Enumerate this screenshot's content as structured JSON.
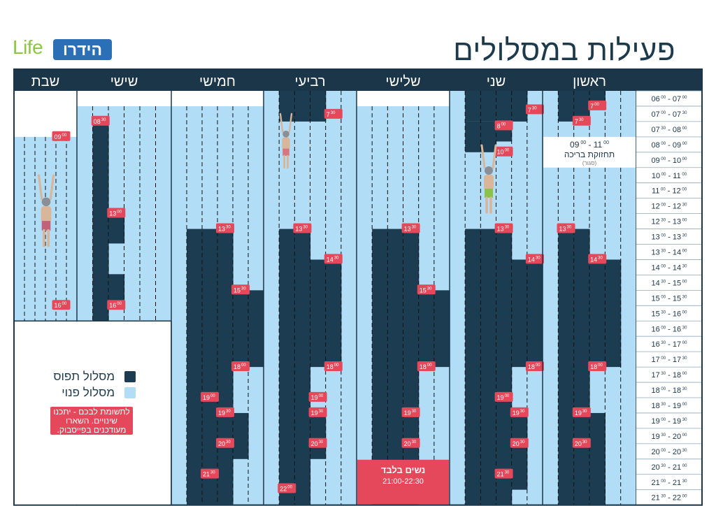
{
  "title": "פעילות במסלולים",
  "logo": {
    "life": "Life",
    "brand": "הידרו"
  },
  "legend": {
    "occupied": "מסלול תפוס",
    "free": "מסלול פנוי",
    "notice": "לתשומת לבכם - יתכנו שינויים. השארו מעודכנים בפייסבוק."
  },
  "colors": {
    "occupied": "#1c3d51",
    "free": "#b2ddf7",
    "header": "#1b3648",
    "badge": "#e5485a",
    "white": "#ffffff",
    "grid": "#1b3648"
  },
  "time_slots": [
    {
      "a": "06",
      "as": "00",
      "b": "07",
      "bs": "00"
    },
    {
      "a": "07",
      "as": "00",
      "b": "07",
      "bs": "30"
    },
    {
      "a": "07",
      "as": "30",
      "b": "08",
      "bs": "00"
    },
    {
      "a": "08",
      "as": "00",
      "b": "09",
      "bs": "00"
    },
    {
      "a": "09",
      "as": "00",
      "b": "10",
      "bs": "00"
    },
    {
      "a": "10",
      "as": "00",
      "b": "11",
      "bs": "00"
    },
    {
      "a": "11",
      "as": "00",
      "b": "12",
      "bs": "00"
    },
    {
      "a": "12",
      "as": "00",
      "b": "12",
      "bs": "30"
    },
    {
      "a": "12",
      "as": "30",
      "b": "13",
      "bs": "00"
    },
    {
      "a": "13",
      "as": "00",
      "b": "13",
      "bs": "30"
    },
    {
      "a": "13",
      "as": "30",
      "b": "14",
      "bs": "00"
    },
    {
      "a": "14",
      "as": "00",
      "b": "14",
      "bs": "30"
    },
    {
      "a": "14",
      "as": "30",
      "b": "15",
      "bs": "00"
    },
    {
      "a": "15",
      "as": "00",
      "b": "15",
      "bs": "30"
    },
    {
      "a": "15",
      "as": "30",
      "b": "16",
      "bs": "00"
    },
    {
      "a": "16",
      "as": "00",
      "b": "16",
      "bs": "30"
    },
    {
      "a": "16",
      "as": "30",
      "b": "17",
      "bs": "00"
    },
    {
      "a": "17",
      "as": "00",
      "b": "17",
      "bs": "30"
    },
    {
      "a": "17",
      "as": "30",
      "b": "18",
      "bs": "00"
    },
    {
      "a": "18",
      "as": "00",
      "b": "18",
      "bs": "30"
    },
    {
      "a": "18",
      "as": "30",
      "b": "19",
      "bs": "00"
    },
    {
      "a": "19",
      "as": "00",
      "b": "19",
      "bs": "30"
    },
    {
      "a": "19",
      "as": "30",
      "b": "20",
      "bs": "00"
    },
    {
      "a": "20",
      "as": "00",
      "b": "20",
      "bs": "30"
    },
    {
      "a": "20",
      "as": "30",
      "b": "21",
      "bs": "00"
    },
    {
      "a": "21",
      "as": "00",
      "b": "21",
      "bs": "30"
    },
    {
      "a": "21",
      "as": "30",
      "b": "22",
      "bs": "00"
    }
  ],
  "days": [
    {
      "key": "sun",
      "name": "ראשון",
      "open": 0,
      "close": 27,
      "occupied": [
        {
          "lane": 3,
          "from": 0,
          "to": 1
        },
        {
          "lane": 4,
          "from": 0,
          "to": 2
        },
        {
          "lane": 5,
          "from": 0,
          "to": 2
        },
        {
          "lane": 4,
          "from": 9,
          "to": 27
        },
        {
          "lane": 5,
          "from": 9,
          "to": 27
        },
        {
          "lane": 3,
          "from": 11,
          "to": 18
        },
        {
          "lane": 2,
          "from": 11,
          "to": 18
        },
        {
          "lane": 3,
          "from": 21,
          "to": 27
        }
      ],
      "badges": [
        {
          "h": "7",
          "m": "00",
          "lane": 3,
          "slot": 0.95
        },
        {
          "h": "7",
          "m": "30",
          "lane": 4,
          "slot": 1.95
        },
        {
          "h": "13",
          "m": "30",
          "lane": 5,
          "slot": 8.95
        },
        {
          "h": "14",
          "m": "30",
          "lane": 3,
          "slot": 10.95
        },
        {
          "h": "18",
          "m": "00",
          "lane": 3,
          "slot": 17.95
        },
        {
          "h": "19",
          "m": "30",
          "lane": 4,
          "slot": 20.95
        },
        {
          "h": "20",
          "m": "30",
          "lane": 4,
          "slot": 22.95
        }
      ],
      "maintenance": {
        "time_start": "09",
        "ts_sup": "00",
        "time_end": "11",
        "te_sup": "00",
        "label": "תחזוקת בריכה",
        "sub": "(סגור)",
        "from": 3,
        "to": 5
      }
    },
    {
      "key": "mon",
      "name": "שני",
      "open": 0,
      "close": 27,
      "occupied": [
        {
          "lane": 2,
          "from": 0,
          "to": 2
        },
        {
          "lane": 3,
          "from": 0,
          "to": 2
        },
        {
          "lane": 4,
          "from": 0,
          "to": 2
        },
        {
          "lane": 5,
          "from": 0,
          "to": 2
        },
        {
          "lane": 3,
          "from": 2,
          "to": 3.3
        },
        {
          "lane": 4,
          "from": 2,
          "to": 4
        },
        {
          "lane": 5,
          "from": 2,
          "to": 4
        },
        {
          "lane": 3,
          "from": 9,
          "to": 27
        },
        {
          "lane": 4,
          "from": 9,
          "to": 27
        },
        {
          "lane": 5,
          "from": 9,
          "to": 27
        },
        {
          "lane": 2,
          "from": 11,
          "to": 18
        },
        {
          "lane": 1,
          "from": 11,
          "to": 18
        },
        {
          "lane": 2,
          "from": 21,
          "to": 26
        }
      ],
      "badges": [
        {
          "h": "7",
          "m": "30",
          "lane": 1,
          "slot": 1.2
        },
        {
          "h": "8",
          "m": "00",
          "lane": 3,
          "slot": 2.25
        },
        {
          "h": "10",
          "m": "00",
          "lane": 3,
          "slot": 3.95
        },
        {
          "h": "13",
          "m": "30",
          "lane": 3,
          "slot": 8.95
        },
        {
          "h": "14",
          "m": "30",
          "lane": 1,
          "slot": 10.95
        },
        {
          "h": "18",
          "m": "00",
          "lane": 1,
          "slot": 17.95
        },
        {
          "h": "19",
          "m": "00",
          "lane": 3,
          "slot": 19.95
        },
        {
          "h": "19",
          "m": "30",
          "lane": 2,
          "slot": 20.95
        },
        {
          "h": "20",
          "m": "30",
          "lane": 2,
          "slot": 22.95
        },
        {
          "h": "21",
          "m": "30",
          "lane": 3,
          "slot": 24.95
        }
      ]
    },
    {
      "key": "tue",
      "name": "שלישי",
      "open": 1,
      "close": 27,
      "occupied": [
        {
          "lane": 3,
          "from": 9,
          "to": 27
        },
        {
          "lane": 4,
          "from": 9,
          "to": 27
        },
        {
          "lane": 5,
          "from": 9,
          "to": 27
        },
        {
          "lane": 2,
          "from": 13,
          "to": 18
        },
        {
          "lane": 1,
          "from": 13,
          "to": 18
        }
      ],
      "badges": [
        {
          "h": "13",
          "m": "30",
          "lane": 3,
          "slot": 8.95
        },
        {
          "h": "15",
          "m": "30",
          "lane": 2,
          "slot": 12.95
        },
        {
          "h": "18",
          "m": "00",
          "lane": 2,
          "slot": 17.95
        },
        {
          "h": "19",
          "m": "30",
          "lane": 3,
          "slot": 20.95
        },
        {
          "h": "20",
          "m": "30",
          "lane": 3,
          "slot": 22.95
        }
      ],
      "women": {
        "label": "נשים בלבד",
        "hours": "21:00-22:30",
        "from": 24,
        "to": 27
      }
    },
    {
      "key": "wed",
      "name": "רביעי",
      "open": 0,
      "close": 27,
      "occupied": [
        {
          "lane": 3,
          "from": 0,
          "to": 2
        },
        {
          "lane": 4,
          "from": 0,
          "to": 2
        },
        {
          "lane": 5,
          "from": 0,
          "to": 2
        },
        {
          "lane": 4,
          "from": 9,
          "to": 27
        },
        {
          "lane": 5,
          "from": 9,
          "to": 27
        },
        {
          "lane": 3,
          "from": 11,
          "to": 18
        },
        {
          "lane": 2,
          "from": 11,
          "to": 18
        },
        {
          "lane": 3,
          "from": 21,
          "to": 24
        }
      ],
      "badges": [
        {
          "h": "7",
          "m": "30",
          "lane": 2,
          "slot": 1.5
        },
        {
          "h": "13",
          "m": "30",
          "lane": 4,
          "slot": 8.95
        },
        {
          "h": "14",
          "m": "30",
          "lane": 2,
          "slot": 10.95
        },
        {
          "h": "18",
          "m": "00",
          "lane": 2,
          "slot": 17.95
        },
        {
          "h": "19",
          "m": "00",
          "lane": 3,
          "slot": 19.95
        },
        {
          "h": "19",
          "m": "30",
          "lane": 3,
          "slot": 20.95
        },
        {
          "h": "20",
          "m": "30",
          "lane": 3,
          "slot": 22.95
        },
        {
          "h": "22",
          "m": "00",
          "lane": 5,
          "slot": 25.9
        }
      ]
    },
    {
      "key": "thu",
      "name": "חמישי",
      "open": 1,
      "close": 27,
      "occupied": [
        {
          "lane": 3,
          "from": 9,
          "to": 27
        },
        {
          "lane": 4,
          "from": 9,
          "to": 27
        },
        {
          "lane": 5,
          "from": 9,
          "to": 27
        },
        {
          "lane": 2,
          "from": 13,
          "to": 18
        },
        {
          "lane": 1,
          "from": 13,
          "to": 18
        },
        {
          "lane": 2,
          "from": 21,
          "to": 24
        }
      ],
      "badges": [
        {
          "h": "13",
          "m": "30",
          "lane": 3,
          "slot": 8.95
        },
        {
          "h": "15",
          "m": "30",
          "lane": 2,
          "slot": 12.95
        },
        {
          "h": "18",
          "m": "00",
          "lane": 2,
          "slot": 17.95
        },
        {
          "h": "19",
          "m": "00",
          "lane": 4,
          "slot": 19.95
        },
        {
          "h": "19",
          "m": "30",
          "lane": 3,
          "slot": 20.95
        },
        {
          "h": "20",
          "m": "30",
          "lane": 3,
          "slot": 22.95
        },
        {
          "h": "21",
          "m": "30",
          "lane": 4,
          "slot": 24.95
        }
      ]
    },
    {
      "key": "fri",
      "name": "שישי",
      "open": 1,
      "close": 15,
      "occupied": [
        {
          "lane": 5,
          "from": 1.95,
          "to": 15
        },
        {
          "lane": 4,
          "from": 7.95,
          "to": 9.95
        },
        {
          "lane": 4,
          "from": 11.95,
          "to": 13.95
        }
      ],
      "badges": [
        {
          "h": "08",
          "m": "30",
          "lane": 5,
          "slot": 1.95
        },
        {
          "h": "13",
          "m": "00",
          "lane": 4,
          "slot": 7.95
        },
        {
          "h": "16",
          "m": "00",
          "lane": 4,
          "slot": 13.95
        }
      ]
    },
    {
      "key": "sat",
      "name": "שבת",
      "open": 3,
      "close": 15,
      "occupied": [],
      "badges": [
        {
          "h": "09",
          "m": "00",
          "lane": 2,
          "slot": 2.95
        },
        {
          "h": "16",
          "m": "00",
          "lane": 2,
          "slot": 13.95
        }
      ]
    }
  ]
}
